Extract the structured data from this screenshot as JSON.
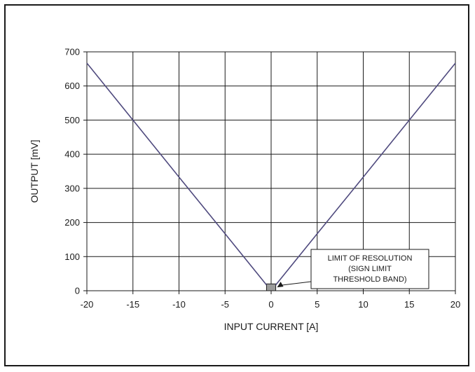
{
  "chart_data": {
    "type": "line",
    "title": "",
    "xlabel": "INPUT CURRENT [A]",
    "ylabel": "OUTPUT [mV]",
    "xlim": [
      -20,
      20
    ],
    "ylim": [
      0,
      700
    ],
    "xticks": [
      -20,
      -15,
      -10,
      -5,
      0,
      5,
      10,
      15,
      20
    ],
    "yticks": [
      0,
      100,
      200,
      300,
      400,
      500,
      600,
      700
    ],
    "grid": true,
    "series": [
      {
        "x": [
          -20,
          -15,
          -10,
          -5,
          -0.5
        ],
        "y": [
          667,
          500,
          333,
          167,
          17
        ],
        "color": "#4f4a7e"
      },
      {
        "x": [
          0.5,
          5,
          10,
          15,
          20
        ],
        "y": [
          17,
          167,
          333,
          500,
          667
        ],
        "color": "#4f4a7e"
      }
    ],
    "band": {
      "x": [
        -0.5,
        0.5
      ],
      "y": [
        0,
        20
      ],
      "color": "#9a9a9a"
    },
    "annotation": {
      "lines": [
        "LIMIT OF RESOLUTION",
        "(SIGN LIMIT",
        "THRESHOLD BAND)"
      ],
      "target": [
        0.5,
        10
      ]
    }
  }
}
